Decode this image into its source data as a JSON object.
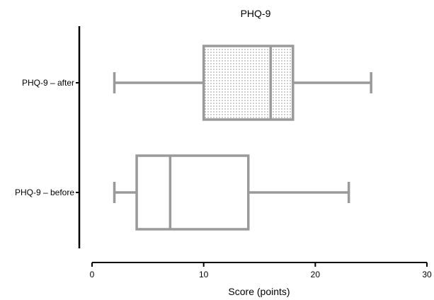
{
  "chart_data": {
    "type": "box",
    "orientation": "horizontal",
    "title": "PHQ-9",
    "xlabel": "Score (points)",
    "ylabel": "",
    "xlim": [
      0,
      30
    ],
    "x_ticks": [
      0,
      10,
      20,
      30
    ],
    "grid": false,
    "categories": [
      "PHQ-9 – after",
      "PHQ-9 – before"
    ],
    "boxes": [
      {
        "category": "PHQ-9 – after",
        "min": 2,
        "q1": 10,
        "median": 16,
        "q3": 18,
        "max": 25,
        "fill": "dotted"
      },
      {
        "category": "PHQ-9 – before",
        "min": 2,
        "q1": 4,
        "median": 7,
        "q3": 14,
        "max": 23,
        "fill": "none"
      }
    ],
    "colors": {
      "box_stroke": "#9a9a9a",
      "dot": "#555555",
      "axis": "#000000"
    }
  }
}
